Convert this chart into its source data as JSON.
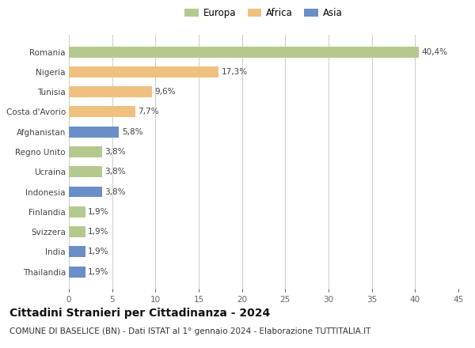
{
  "countries": [
    "Romania",
    "Nigeria",
    "Tunisia",
    "Costa d'Avorio",
    "Afghanistan",
    "Regno Unito",
    "Ucraina",
    "Indonesia",
    "Finlandia",
    "Svizzera",
    "India",
    "Thailandia"
  ],
  "values": [
    40.4,
    17.3,
    9.6,
    7.7,
    5.8,
    3.8,
    3.8,
    3.8,
    1.9,
    1.9,
    1.9,
    1.9
  ],
  "continents": [
    "Europa",
    "Africa",
    "Africa",
    "Africa",
    "Asia",
    "Europa",
    "Europa",
    "Asia",
    "Europa",
    "Europa",
    "Asia",
    "Asia"
  ],
  "colors": {
    "Europa": "#b5c98e",
    "Africa": "#f0c080",
    "Asia": "#6a8fc8"
  },
  "legend_order": [
    "Europa",
    "Africa",
    "Asia"
  ],
  "xlim": [
    0,
    45
  ],
  "xticks": [
    0,
    5,
    10,
    15,
    20,
    25,
    30,
    35,
    40,
    45
  ],
  "title": "Cittadini Stranieri per Cittadinanza - 2024",
  "subtitle": "COMUNE DI BASELICE (BN) - Dati ISTAT al 1° gennaio 2024 - Elaborazione TUTTITALIA.IT",
  "title_fontsize": 10,
  "subtitle_fontsize": 7.5,
  "label_fontsize": 7.5,
  "tick_fontsize": 7.5,
  "legend_fontsize": 8.5,
  "bar_height": 0.55,
  "background_color": "#ffffff",
  "grid_color": "#cccccc"
}
